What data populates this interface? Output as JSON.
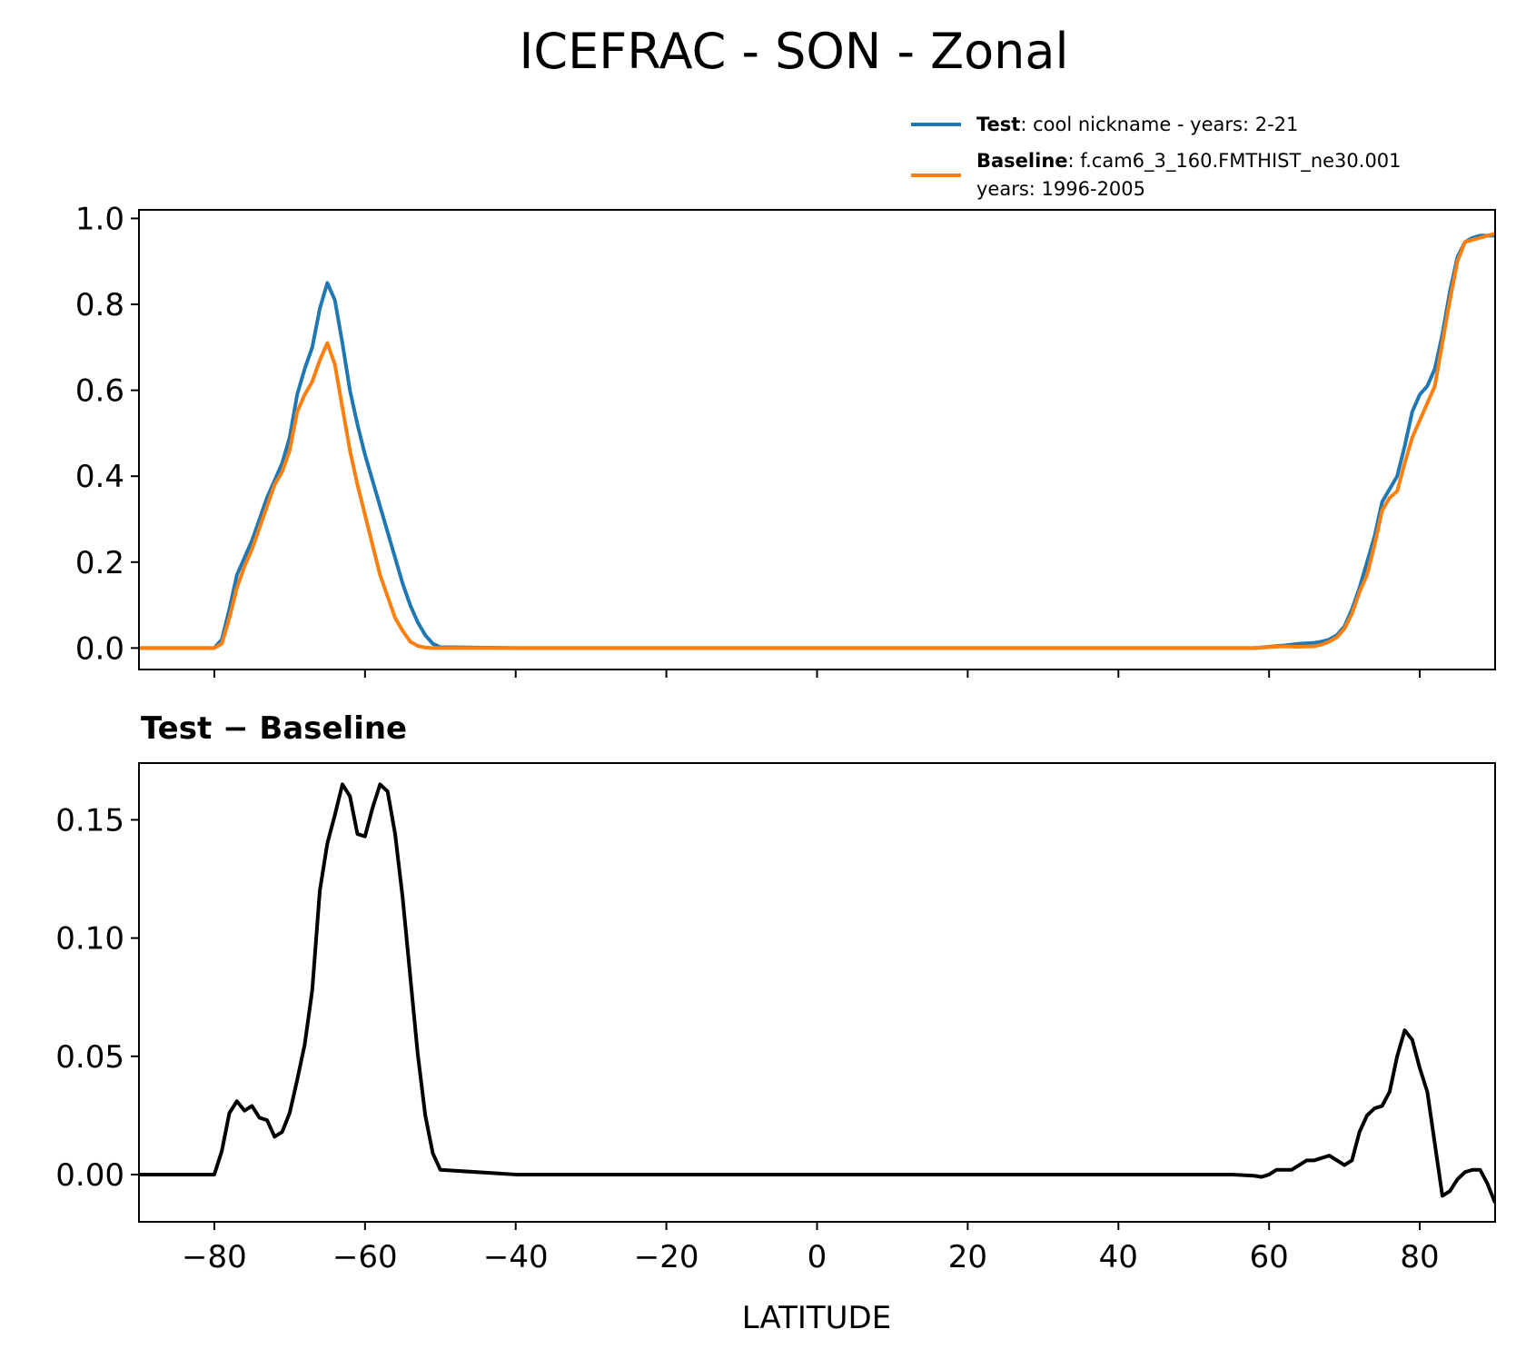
{
  "title": "ICEFRAC - SON - Zonal",
  "legend": {
    "test_label": "Test",
    "test_desc": ": cool nickname - years: 2-21",
    "baseline_label": "Baseline",
    "baseline_desc": ": f.cam6_3_160.FMTHIST_ne30.001",
    "baseline_desc2": "years: 1996-2005"
  },
  "colors": {
    "test": "#1f77b4",
    "baseline": "#ff7f0e",
    "diff": "#000000"
  },
  "chart_data": [
    {
      "type": "line",
      "title": "",
      "xlabel": "",
      "ylabel": "",
      "xlim": [
        -90,
        90
      ],
      "ylim": [
        -0.05,
        1.02
      ],
      "yticks": [
        0.0,
        0.2,
        0.4,
        0.6,
        0.8,
        1.0
      ],
      "ytick_labels": [
        "0.0",
        "0.2",
        "0.4",
        "0.6",
        "0.8",
        "1.0"
      ],
      "xticks": [
        -80,
        -60,
        -40,
        -20,
        0,
        20,
        40,
        60,
        80
      ],
      "legend_position": "above-right",
      "series": [
        {
          "name": "Test",
          "color": "#1f77b4",
          "x": [
            -90,
            -80,
            -79,
            -78,
            -77,
            -76,
            -75,
            -74,
            -73,
            -72,
            -71,
            -70,
            -69,
            -68,
            -67,
            -66,
            -65,
            -64,
            -63,
            -62,
            -61,
            -60,
            -59,
            -58,
            -57,
            -56,
            -55,
            -54,
            -53,
            -52,
            -51,
            -50,
            -40,
            0,
            50,
            58,
            60,
            62,
            64,
            66,
            67,
            68,
            69,
            70,
            71,
            72,
            73,
            74,
            75,
            76,
            77,
            78,
            79,
            80,
            81,
            82,
            83,
            84,
            85,
            86,
            87,
            88,
            89,
            90
          ],
          "y": [
            0,
            0,
            0.02,
            0.09,
            0.17,
            0.21,
            0.25,
            0.3,
            0.35,
            0.39,
            0.43,
            0.49,
            0.59,
            0.65,
            0.7,
            0.79,
            0.85,
            0.81,
            0.71,
            0.6,
            0.52,
            0.45,
            0.39,
            0.33,
            0.27,
            0.21,
            0.15,
            0.1,
            0.06,
            0.03,
            0.01,
            0.002,
            0,
            0,
            0,
            0,
            0.003,
            0.006,
            0.01,
            0.012,
            0.015,
            0.02,
            0.03,
            0.05,
            0.09,
            0.14,
            0.2,
            0.26,
            0.34,
            0.37,
            0.4,
            0.47,
            0.55,
            0.59,
            0.61,
            0.65,
            0.73,
            0.83,
            0.91,
            0.945,
            0.955,
            0.96,
            0.96,
            0.96
          ]
        },
        {
          "name": "Baseline",
          "color": "#ff7f0e",
          "x": [
            -90,
            -80,
            -79,
            -78,
            -77,
            -76,
            -75,
            -74,
            -73,
            -72,
            -71,
            -70,
            -69,
            -68,
            -67,
            -66,
            -65,
            -64,
            -63,
            -62,
            -61,
            -60,
            -59,
            -58,
            -57,
            -56,
            -55,
            -54,
            -53,
            -52,
            -51,
            -50,
            -40,
            0,
            50,
            58,
            60,
            62,
            64,
            66,
            67,
            68,
            69,
            70,
            71,
            72,
            73,
            74,
            75,
            76,
            77,
            78,
            79,
            80,
            81,
            82,
            83,
            84,
            85,
            86,
            87,
            88,
            89,
            90
          ],
          "y": [
            0,
            0,
            0.01,
            0.07,
            0.14,
            0.19,
            0.23,
            0.28,
            0.33,
            0.38,
            0.41,
            0.46,
            0.55,
            0.59,
            0.62,
            0.67,
            0.71,
            0.66,
            0.56,
            0.46,
            0.38,
            0.31,
            0.24,
            0.17,
            0.12,
            0.07,
            0.04,
            0.015,
            0.005,
            0.001,
            0,
            0,
            0,
            0,
            0,
            0,
            0.002,
            0.004,
            0.003,
            0.004,
            0.008,
            0.015,
            0.025,
            0.045,
            0.08,
            0.13,
            0.17,
            0.24,
            0.32,
            0.35,
            0.365,
            0.43,
            0.49,
            0.53,
            0.57,
            0.61,
            0.71,
            0.81,
            0.9,
            0.945,
            0.95,
            0.955,
            0.96,
            0.965
          ]
        }
      ]
    },
    {
      "type": "line",
      "title": "Test − Baseline",
      "xlabel": "LATITUDE",
      "ylabel": "",
      "xlim": [
        -90,
        90
      ],
      "ylim": [
        -0.02,
        0.174
      ],
      "yticks": [
        0.0,
        0.05,
        0.1,
        0.15
      ],
      "ytick_labels": [
        "0.00",
        "0.05",
        "0.10",
        "0.15"
      ],
      "xticks": [
        -80,
        -60,
        -40,
        -20,
        0,
        20,
        40,
        60,
        80
      ],
      "xtick_labels": [
        "−80",
        "−60",
        "−40",
        "−20",
        "0",
        "20",
        "40",
        "60",
        "80"
      ],
      "series": [
        {
          "name": "",
          "color": "#000000",
          "x": [
            -90,
            -80,
            -79,
            -78,
            -77,
            -76,
            -75,
            -74,
            -73,
            -72,
            -71,
            -70,
            -69,
            -68,
            -67,
            -66,
            -65,
            -64,
            -63,
            -62,
            -61,
            -60,
            -59,
            -58,
            -57,
            -56,
            -55,
            -54,
            -53,
            -52,
            -51,
            -50,
            -40,
            0,
            50,
            55,
            58,
            59,
            60,
            61,
            62,
            63,
            64,
            65,
            66,
            67,
            68,
            69,
            70,
            71,
            72,
            73,
            74,
            75,
            76,
            77,
            78,
            79,
            80,
            81,
            82,
            83,
            84,
            85,
            86,
            87,
            88,
            89,
            90
          ],
          "y": [
            0,
            0,
            0.01,
            0.026,
            0.031,
            0.027,
            0.029,
            0.024,
            0.023,
            0.016,
            0.018,
            0.026,
            0.04,
            0.055,
            0.078,
            0.12,
            0.14,
            0.152,
            0.165,
            0.16,
            0.144,
            0.143,
            0.155,
            0.165,
            0.162,
            0.144,
            0.117,
            0.084,
            0.051,
            0.025,
            0.009,
            0.002,
            0,
            0,
            0,
            0,
            -0.0005,
            -0.001,
            0,
            0.002,
            0.002,
            0.002,
            0.004,
            0.006,
            0.006,
            0.007,
            0.008,
            0.006,
            0.004,
            0.006,
            0.018,
            0.025,
            0.028,
            0.029,
            0.035,
            0.05,
            0.061,
            0.057,
            0.045,
            0.035,
            0.013,
            -0.009,
            -0.007,
            -0.002,
            0.001,
            0.002,
            0.002,
            -0.004,
            -0.012
          ]
        }
      ]
    }
  ]
}
